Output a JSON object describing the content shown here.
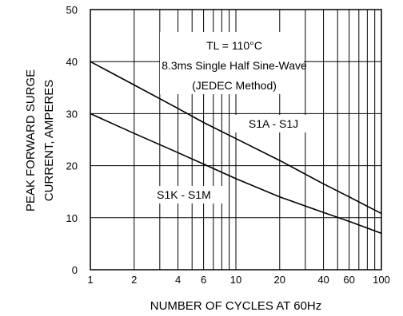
{
  "chart_data": {
    "type": "line",
    "xscale": "log",
    "xlim": [
      1,
      100
    ],
    "ylim": [
      0,
      50
    ],
    "grid": true,
    "xlabel": "NUMBER OF CYCLES AT 60Hz",
    "ylabel_line1": "PEAK FORWARD SURGE",
    "ylabel_line2": "CURRENT, AMPERES",
    "x_ticks": [
      "1",
      "2",
      "4",
      "6",
      "10",
      "20",
      "40",
      "60",
      "100"
    ],
    "x_tick_values": [
      1,
      2,
      4,
      6,
      10,
      20,
      40,
      60,
      100
    ],
    "y_ticks": [
      "0",
      "10",
      "20",
      "30",
      "40",
      "50"
    ],
    "y_tick_values": [
      0,
      10,
      20,
      30,
      40,
      50
    ],
    "annotation": {
      "line1": "TL = 110°C",
      "line2": "8.3ms Single Half Sine-Wave",
      "line3": "(JEDEC Method)"
    },
    "series": [
      {
        "name": "S1A - S1J",
        "x": [
          1,
          2,
          4,
          6,
          10,
          20,
          40,
          60,
          100
        ],
        "values": [
          40,
          35.5,
          31,
          28.3,
          25.2,
          21,
          16.5,
          14,
          10.8
        ]
      },
      {
        "name": "S1K - S1M",
        "x": [
          1,
          2,
          4,
          6,
          10,
          20,
          40,
          60,
          100
        ],
        "values": [
          30,
          26.2,
          22.5,
          20.3,
          17.5,
          14,
          11,
          9.3,
          7
        ]
      }
    ]
  }
}
